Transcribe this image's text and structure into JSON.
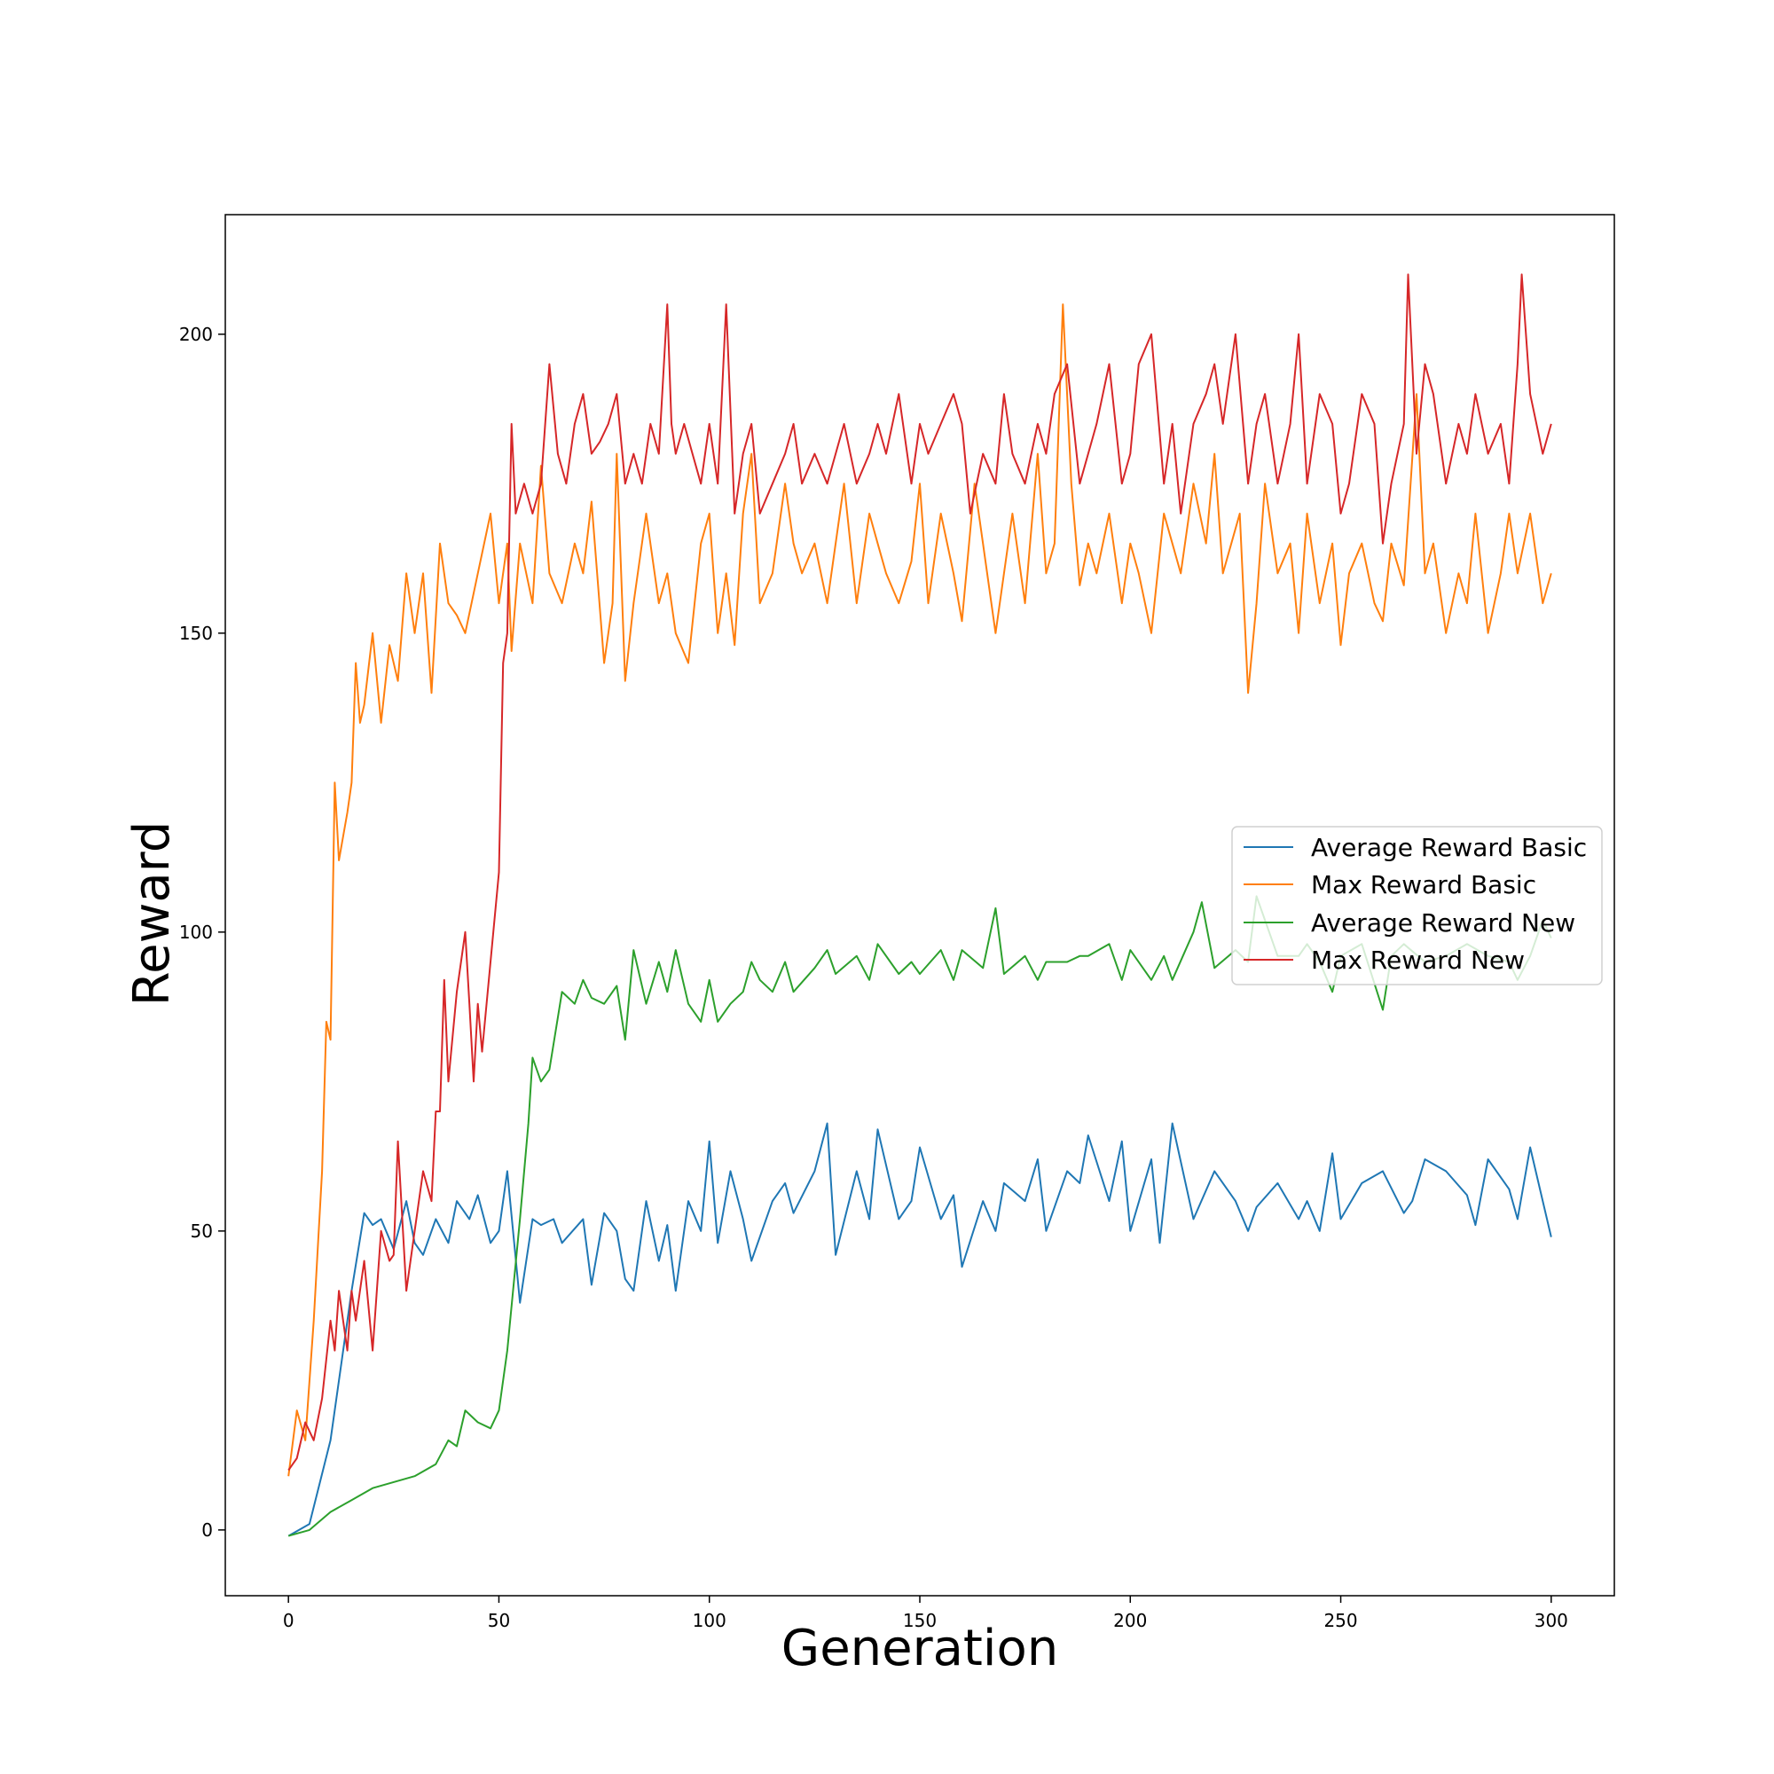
{
  "chart_data": {
    "type": "line",
    "title": "",
    "xlabel": "Generation",
    "ylabel": "Reward",
    "xlim": [
      -15,
      315
    ],
    "ylim": [
      -11,
      220
    ],
    "x_ticks": [
      0,
      50,
      100,
      150,
      200,
      250,
      300
    ],
    "y_ticks": [
      0,
      50,
      100,
      150,
      200
    ],
    "grid": false,
    "legend_position": "center-right",
    "series": [
      {
        "name": "Average Reward Basic",
        "color": "#1f77b4",
        "x": [
          0,
          5,
          10,
          15,
          18,
          20,
          22,
          25,
          28,
          30,
          32,
          35,
          38,
          40,
          43,
          45,
          48,
          50,
          52,
          55,
          58,
          60,
          63,
          65,
          70,
          72,
          75,
          78,
          80,
          82,
          85,
          88,
          90,
          92,
          95,
          98,
          100,
          102,
          105,
          108,
          110,
          115,
          118,
          120,
          125,
          128,
          130,
          135,
          138,
          140,
          145,
          148,
          150,
          155,
          158,
          160,
          165,
          168,
          170,
          175,
          178,
          180,
          185,
          188,
          190,
          195,
          198,
          200,
          205,
          207,
          210,
          215,
          220,
          225,
          228,
          230,
          235,
          240,
          242,
          245,
          248,
          250,
          255,
          260,
          265,
          267,
          270,
          275,
          280,
          282,
          285,
          290,
          292,
          295,
          298,
          300
        ],
        "values": [
          -1,
          1,
          15,
          40,
          53,
          51,
          52,
          47,
          55,
          48,
          46,
          52,
          48,
          55,
          52,
          56,
          48,
          50,
          60,
          38,
          52,
          51,
          52,
          48,
          52,
          41,
          53,
          50,
          42,
          40,
          55,
          45,
          51,
          40,
          55,
          50,
          65,
          48,
          60,
          52,
          45,
          55,
          58,
          53,
          60,
          68,
          46,
          60,
          52,
          67,
          52,
          55,
          64,
          52,
          56,
          44,
          55,
          50,
          58,
          55,
          62,
          50,
          60,
          58,
          66,
          55,
          65,
          50,
          62,
          48,
          68,
          52,
          60,
          55,
          50,
          54,
          58,
          52,
          55,
          50,
          63,
          52,
          58,
          60,
          53,
          55,
          62,
          60,
          56,
          51,
          62,
          57,
          52,
          64,
          55,
          49
        ]
      },
      {
        "name": "Max Reward Basic",
        "color": "#ff7f0e",
        "x": [
          0,
          2,
          4,
          6,
          8,
          9,
          10,
          11,
          12,
          14,
          15,
          16,
          17,
          18,
          20,
          22,
          24,
          26,
          28,
          30,
          32,
          34,
          36,
          38,
          40,
          42,
          45,
          48,
          50,
          52,
          53,
          55,
          58,
          60,
          62,
          65,
          68,
          70,
          72,
          75,
          77,
          78,
          80,
          82,
          85,
          88,
          90,
          92,
          95,
          98,
          100,
          102,
          104,
          106,
          108,
          110,
          112,
          115,
          118,
          120,
          122,
          125,
          128,
          130,
          132,
          135,
          138,
          140,
          142,
          145,
          148,
          150,
          152,
          155,
          158,
          160,
          163,
          165,
          168,
          170,
          172,
          175,
          178,
          180,
          182,
          184,
          186,
          188,
          190,
          192,
          195,
          198,
          200,
          202,
          205,
          208,
          210,
          212,
          215,
          218,
          220,
          222,
          224,
          226,
          228,
          230,
          232,
          235,
          238,
          240,
          242,
          245,
          248,
          250,
          252,
          255,
          258,
          260,
          262,
          265,
          268,
          270,
          272,
          275,
          278,
          280,
          282,
          285,
          288,
          290,
          292,
          295,
          298,
          300
        ],
        "values": [
          9,
          20,
          15,
          35,
          60,
          85,
          82,
          125,
          112,
          120,
          125,
          145,
          135,
          138,
          150,
          135,
          148,
          142,
          160,
          150,
          160,
          140,
          165,
          155,
          153,
          150,
          160,
          170,
          155,
          165,
          147,
          165,
          155,
          178,
          160,
          155,
          165,
          160,
          172,
          145,
          155,
          180,
          142,
          155,
          170,
          155,
          160,
          150,
          145,
          165,
          170,
          150,
          160,
          148,
          170,
          180,
          155,
          160,
          175,
          165,
          160,
          165,
          155,
          165,
          175,
          155,
          170,
          165,
          160,
          155,
          162,
          175,
          155,
          170,
          160,
          152,
          175,
          165,
          150,
          160,
          170,
          155,
          180,
          160,
          165,
          205,
          175,
          158,
          165,
          160,
          170,
          155,
          165,
          160,
          150,
          170,
          165,
          160,
          175,
          165,
          180,
          160,
          165,
          170,
          140,
          155,
          175,
          160,
          165,
          150,
          170,
          155,
          165,
          148,
          160,
          165,
          155,
          152,
          165,
          158,
          190,
          160,
          165,
          150,
          160,
          155,
          170,
          150,
          160,
          170,
          160,
          170,
          155,
          160
        ]
      },
      {
        "name": "Average Reward New",
        "color": "#2ca02c",
        "x": [
          0,
          5,
          10,
          15,
          20,
          25,
          30,
          35,
          38,
          40,
          42,
          45,
          48,
          50,
          52,
          55,
          57,
          58,
          60,
          62,
          65,
          68,
          70,
          72,
          75,
          78,
          80,
          82,
          85,
          88,
          90,
          92,
          95,
          98,
          100,
          102,
          105,
          108,
          110,
          112,
          115,
          118,
          120,
          125,
          128,
          130,
          135,
          138,
          140,
          145,
          148,
          150,
          155,
          158,
          160,
          165,
          168,
          170,
          175,
          178,
          180,
          185,
          188,
          190,
          195,
          198,
          200,
          205,
          208,
          210,
          215,
          217,
          220,
          225,
          228,
          230,
          235,
          240,
          242,
          245,
          248,
          250,
          255,
          260,
          262,
          265,
          270,
          275,
          280,
          285,
          290,
          292,
          295,
          298,
          300
        ],
        "values": [
          -1,
          0,
          3,
          5,
          7,
          8,
          9,
          11,
          15,
          14,
          20,
          18,
          17,
          20,
          30,
          52,
          68,
          79,
          75,
          77,
          90,
          88,
          92,
          89,
          88,
          91,
          82,
          97,
          88,
          95,
          90,
          97,
          88,
          85,
          92,
          85,
          88,
          90,
          95,
          92,
          90,
          95,
          90,
          94,
          97,
          93,
          96,
          92,
          98,
          93,
          95,
          93,
          97,
          92,
          97,
          94,
          104,
          93,
          96,
          92,
          95,
          95,
          96,
          96,
          98,
          92,
          97,
          92,
          96,
          92,
          100,
          105,
          94,
          97,
          95,
          106,
          96,
          96,
          98,
          95,
          90,
          96,
          98,
          87,
          96,
          98,
          95,
          96,
          98,
          96,
          95,
          92,
          96,
          102,
          99
        ]
      },
      {
        "name": "Max Reward New",
        "color": "#d62728",
        "x": [
          0,
          2,
          4,
          6,
          8,
          10,
          11,
          12,
          14,
          15,
          16,
          18,
          20,
          22,
          24,
          25,
          26,
          28,
          30,
          32,
          34,
          35,
          36,
          37,
          38,
          40,
          42,
          43,
          44,
          45,
          46,
          48,
          50,
          51,
          52,
          53,
          54,
          56,
          58,
          60,
          62,
          64,
          66,
          68,
          70,
          72,
          74,
          76,
          78,
          80,
          82,
          84,
          86,
          88,
          90,
          91,
          92,
          94,
          96,
          98,
          100,
          102,
          104,
          106,
          108,
          110,
          112,
          115,
          118,
          120,
          122,
          125,
          128,
          130,
          132,
          135,
          138,
          140,
          142,
          145,
          148,
          150,
          152,
          155,
          158,
          160,
          162,
          165,
          168,
          170,
          172,
          175,
          178,
          180,
          182,
          185,
          188,
          190,
          192,
          195,
          198,
          200,
          202,
          205,
          208,
          210,
          212,
          215,
          218,
          220,
          222,
          225,
          228,
          230,
          232,
          235,
          238,
          240,
          242,
          245,
          248,
          250,
          252,
          255,
          258,
          260,
          262,
          265,
          266,
          268,
          270,
          272,
          275,
          278,
          280,
          282,
          285,
          288,
          290,
          292,
          293,
          295,
          298,
          300
        ],
        "values": [
          10,
          12,
          18,
          15,
          22,
          35,
          30,
          40,
          30,
          40,
          35,
          45,
          30,
          50,
          45,
          46,
          65,
          40,
          50,
          60,
          55,
          70,
          70,
          92,
          75,
          90,
          100,
          88,
          75,
          88,
          80,
          95,
          110,
          145,
          150,
          185,
          170,
          175,
          170,
          175,
          195,
          180,
          175,
          185,
          190,
          180,
          182,
          185,
          190,
          175,
          180,
          175,
          185,
          180,
          205,
          185,
          180,
          185,
          180,
          175,
          185,
          175,
          205,
          170,
          180,
          185,
          170,
          175,
          180,
          185,
          175,
          180,
          175,
          180,
          185,
          175,
          180,
          185,
          180,
          190,
          175,
          185,
          180,
          185,
          190,
          185,
          170,
          180,
          175,
          190,
          180,
          175,
          185,
          180,
          190,
          195,
          175,
          180,
          185,
          195,
          175,
          180,
          195,
          200,
          175,
          185,
          170,
          185,
          190,
          195,
          185,
          200,
          175,
          185,
          190,
          175,
          185,
          200,
          175,
          190,
          185,
          170,
          175,
          190,
          185,
          165,
          175,
          185,
          210,
          180,
          195,
          190,
          175,
          185,
          180,
          190,
          180,
          185,
          175,
          195,
          210,
          190,
          180,
          185
        ]
      }
    ]
  }
}
